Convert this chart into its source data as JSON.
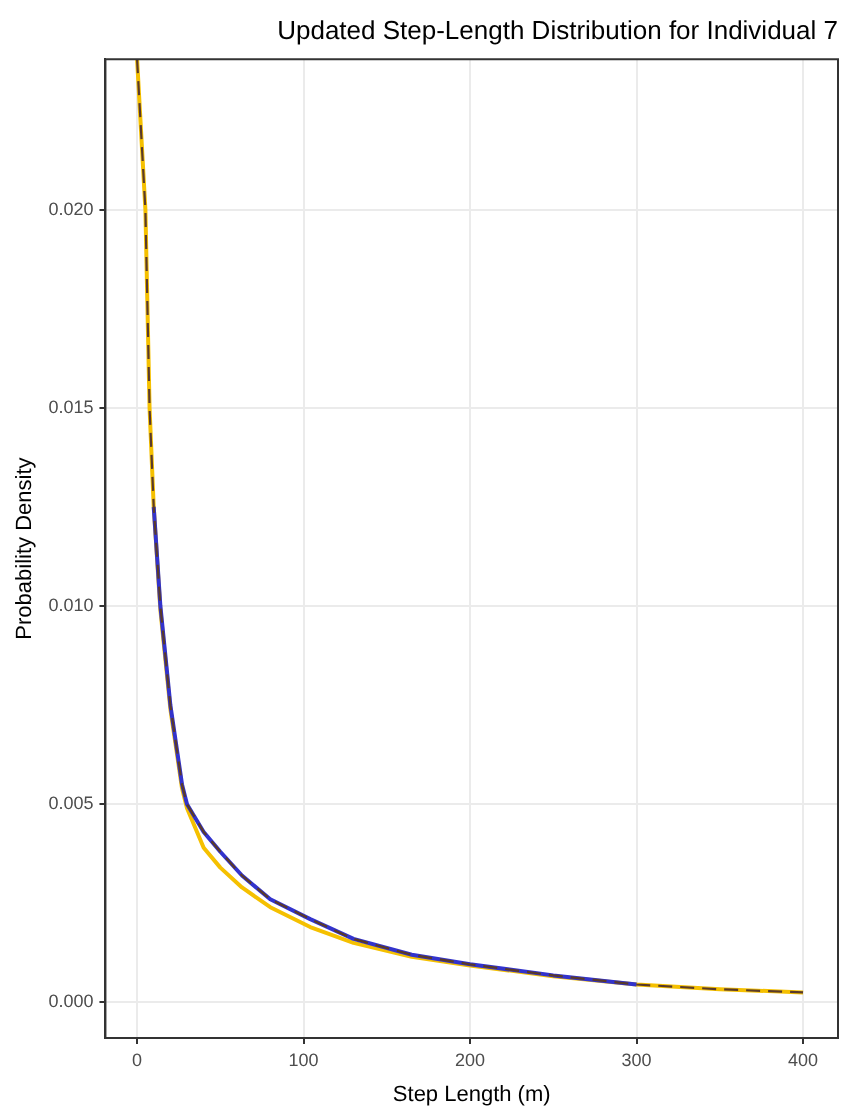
{
  "chart_data": {
    "type": "line",
    "title": "Updated Step-Length Distribution for Individual 7",
    "xlabel": "Step Length (m)",
    "ylabel": "Probability Density",
    "xlim": [
      -19,
      421
    ],
    "xticks": [
      0,
      100,
      200,
      300,
      400
    ],
    "ylim": [
      -0.0009,
      0.0238
    ],
    "yticks": [
      {
        "value": 0,
        "label": "0.000"
      },
      {
        "value": 0.005,
        "label": "0.005"
      },
      {
        "value": 0.01,
        "label": "0.010"
      },
      {
        "value": 0.015,
        "label": "0.015"
      },
      {
        "value": 0.02,
        "label": "0.020"
      }
    ],
    "grid": true,
    "legend": false,
    "marker": "none",
    "series": [
      {
        "color": "#5a3a2a",
        "line_style": "dashed",
        "x": [
          0,
          5,
          7.5,
          10,
          14,
          20,
          27,
          30,
          40,
          50,
          63,
          80,
          104,
          130,
          165,
          200,
          250,
          300,
          350,
          400
        ],
        "values": [
          0.0238,
          0.02,
          0.015,
          0.0125,
          0.01,
          0.0075,
          0.0055,
          0.005,
          0.0043,
          0.0038,
          0.0032,
          0.0026,
          0.0021,
          0.0016,
          0.0012,
          0.00096,
          0.00068,
          0.00045,
          0.00033,
          0.00025
        ]
      },
      {
        "color": "#3333cc",
        "x": [
          10,
          14,
          20,
          27,
          30,
          40,
          50,
          63,
          80,
          104,
          130,
          165,
          200,
          250,
          300
        ],
        "values": [
          0.0125,
          0.01,
          0.0075,
          0.0055,
          0.005,
          0.0043,
          0.0038,
          0.0032,
          0.0026,
          0.0021,
          0.0016,
          0.0012,
          0.00096,
          0.00068,
          0.00045
        ]
      },
      {
        "color": "#f5c000",
        "x": [
          0,
          5,
          7.5,
          10,
          14,
          20,
          27,
          30,
          40,
          50,
          63,
          80,
          104,
          130,
          165,
          200,
          250,
          300,
          350,
          400
        ],
        "values": [
          0.0238,
          0.02,
          0.015,
          0.0125,
          0.0099,
          0.0074,
          0.0054,
          0.0049,
          0.0039,
          0.0034,
          0.0029,
          0.0024,
          0.0019,
          0.0015,
          0.00115,
          0.00093,
          0.00066,
          0.00045,
          0.00033,
          0.00025
        ]
      }
    ]
  }
}
